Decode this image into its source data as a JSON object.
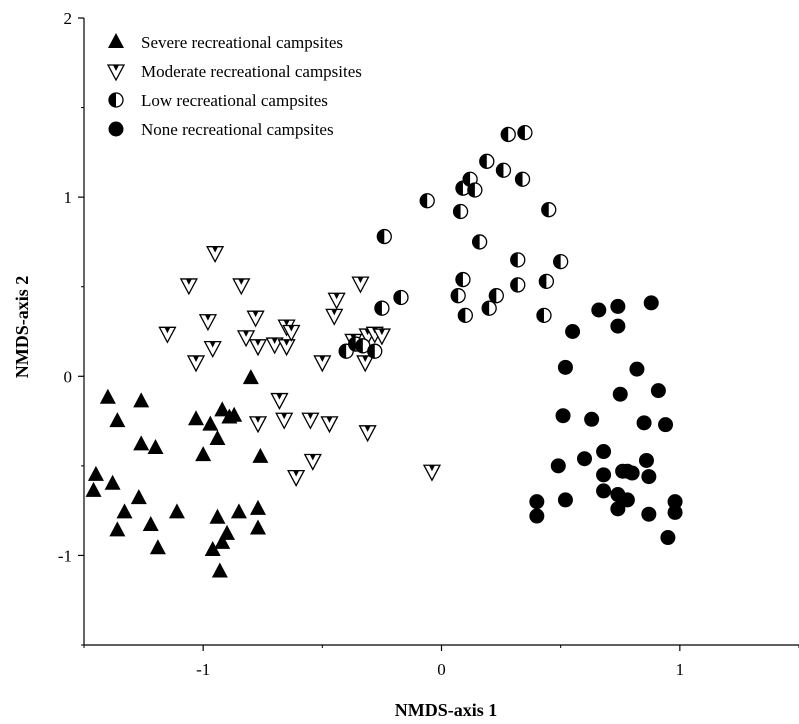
{
  "chart_data": {
    "type": "scatter",
    "title": "",
    "xlabel": "NMDS-axis 1",
    "ylabel": "NMDS-axis 2",
    "xlim": [
      -1.5,
      1.5
    ],
    "ylim": [
      -1.5,
      2.0
    ],
    "xticks": [
      -1,
      0,
      1
    ],
    "yticks": [
      -1,
      0,
      1,
      2
    ],
    "xtick_labels": [
      "-1",
      "0",
      "1"
    ],
    "ytick_labels": [
      "-1",
      "0",
      "1",
      "2"
    ],
    "grid": false,
    "legend_position": "top-left",
    "series": [
      {
        "name": "Severe recreational campsites",
        "marker": "triangle-up-filled",
        "color": "#000000",
        "points": [
          [
            -1.46,
            -0.64
          ],
          [
            -1.45,
            -0.55
          ],
          [
            -1.4,
            -0.12
          ],
          [
            -1.38,
            -0.6
          ],
          [
            -1.36,
            -0.25
          ],
          [
            -1.36,
            -0.86
          ],
          [
            -1.33,
            -0.76
          ],
          [
            -1.27,
            -0.68
          ],
          [
            -1.26,
            -0.14
          ],
          [
            -1.26,
            -0.38
          ],
          [
            -1.22,
            -0.83
          ],
          [
            -1.2,
            -0.4
          ],
          [
            -1.19,
            -0.96
          ],
          [
            -1.11,
            -0.76
          ],
          [
            -1.03,
            -0.24
          ],
          [
            -1.0,
            -0.44
          ],
          [
            -0.97,
            -0.27
          ],
          [
            -0.96,
            -0.97
          ],
          [
            -0.94,
            -0.79
          ],
          [
            -0.94,
            -0.35
          ],
          [
            -0.93,
            -1.09
          ],
          [
            -0.92,
            -0.93
          ],
          [
            -0.92,
            -0.19
          ],
          [
            -0.9,
            -0.88
          ],
          [
            -0.89,
            -0.23
          ],
          [
            -0.87,
            -0.22
          ],
          [
            -0.85,
            -0.76
          ],
          [
            -0.8,
            -0.01
          ],
          [
            -0.77,
            -0.74
          ],
          [
            -0.77,
            -0.85
          ],
          [
            -0.76,
            -0.45
          ]
        ]
      },
      {
        "name": "Moderate recreational campsites",
        "marker": "triangle-down-open",
        "color": "#000000",
        "points": [
          [
            -1.15,
            0.24
          ],
          [
            -1.06,
            0.51
          ],
          [
            -1.03,
            0.08
          ],
          [
            -0.98,
            0.31
          ],
          [
            -0.96,
            0.16
          ],
          [
            -0.95,
            0.69
          ],
          [
            -0.84,
            0.51
          ],
          [
            -0.82,
            0.22
          ],
          [
            -0.78,
            0.33
          ],
          [
            -0.77,
            0.17
          ],
          [
            -0.77,
            -0.26
          ],
          [
            -0.7,
            0.18
          ],
          [
            -0.68,
            -0.13
          ],
          [
            -0.66,
            -0.24
          ],
          [
            -0.65,
            0.17
          ],
          [
            -0.65,
            0.28
          ],
          [
            -0.63,
            0.25
          ],
          [
            -0.61,
            -0.56
          ],
          [
            -0.55,
            -0.24
          ],
          [
            -0.54,
            -0.47
          ],
          [
            -0.5,
            0.08
          ],
          [
            -0.47,
            -0.26
          ],
          [
            -0.45,
            0.34
          ],
          [
            -0.44,
            0.43
          ],
          [
            -0.37,
            0.2
          ],
          [
            -0.34,
            0.52
          ],
          [
            -0.32,
            0.08
          ],
          [
            -0.31,
            0.23
          ],
          [
            -0.31,
            -0.31
          ],
          [
            -0.28,
            0.24
          ],
          [
            -0.25,
            0.23
          ],
          [
            -0.04,
            -0.53
          ]
        ]
      },
      {
        "name": "Low recreational campsites",
        "marker": "circle-half-filled",
        "color": "#000000",
        "points": [
          [
            -0.4,
            0.14
          ],
          [
            -0.36,
            0.18
          ],
          [
            -0.33,
            0.17
          ],
          [
            -0.28,
            0.14
          ],
          [
            -0.25,
            0.38
          ],
          [
            -0.24,
            0.78
          ],
          [
            -0.17,
            0.44
          ],
          [
            -0.06,
            0.98
          ],
          [
            0.07,
            0.45
          ],
          [
            0.08,
            0.92
          ],
          [
            0.09,
            1.05
          ],
          [
            0.09,
            0.54
          ],
          [
            0.1,
            0.34
          ],
          [
            0.12,
            1.1
          ],
          [
            0.14,
            1.04
          ],
          [
            0.16,
            0.75
          ],
          [
            0.19,
            1.2
          ],
          [
            0.2,
            0.38
          ],
          [
            0.23,
            0.45
          ],
          [
            0.26,
            1.15
          ],
          [
            0.28,
            1.35
          ],
          [
            0.32,
            0.65
          ],
          [
            0.32,
            0.51
          ],
          [
            0.34,
            1.1
          ],
          [
            0.35,
            1.36
          ],
          [
            0.43,
            0.34
          ],
          [
            0.44,
            0.53
          ],
          [
            0.45,
            0.93
          ],
          [
            0.5,
            0.64
          ]
        ]
      },
      {
        "name": "None recreational campsites",
        "marker": "circle-filled",
        "color": "#000000",
        "points": [
          [
            0.4,
            -0.7
          ],
          [
            0.4,
            -0.78
          ],
          [
            0.49,
            -0.5
          ],
          [
            0.51,
            -0.22
          ],
          [
            0.52,
            0.05
          ],
          [
            0.52,
            -0.69
          ],
          [
            0.55,
            0.25
          ],
          [
            0.6,
            -0.46
          ],
          [
            0.63,
            -0.24
          ],
          [
            0.66,
            0.37
          ],
          [
            0.68,
            -0.42
          ],
          [
            0.68,
            -0.55
          ],
          [
            0.68,
            -0.64
          ],
          [
            0.74,
            0.39
          ],
          [
            0.74,
            0.28
          ],
          [
            0.74,
            -0.66
          ],
          [
            0.74,
            -0.74
          ],
          [
            0.75,
            -0.1
          ],
          [
            0.76,
            -0.53
          ],
          [
            0.78,
            -0.53
          ],
          [
            0.78,
            -0.69
          ],
          [
            0.8,
            -0.54
          ],
          [
            0.82,
            0.04
          ],
          [
            0.85,
            -0.26
          ],
          [
            0.86,
            -0.47
          ],
          [
            0.87,
            -0.56
          ],
          [
            0.87,
            -0.77
          ],
          [
            0.88,
            0.41
          ],
          [
            0.91,
            -0.08
          ],
          [
            0.94,
            -0.27
          ],
          [
            0.95,
            -0.9
          ],
          [
            0.98,
            -0.7
          ],
          [
            0.98,
            -0.76
          ]
        ]
      }
    ]
  }
}
